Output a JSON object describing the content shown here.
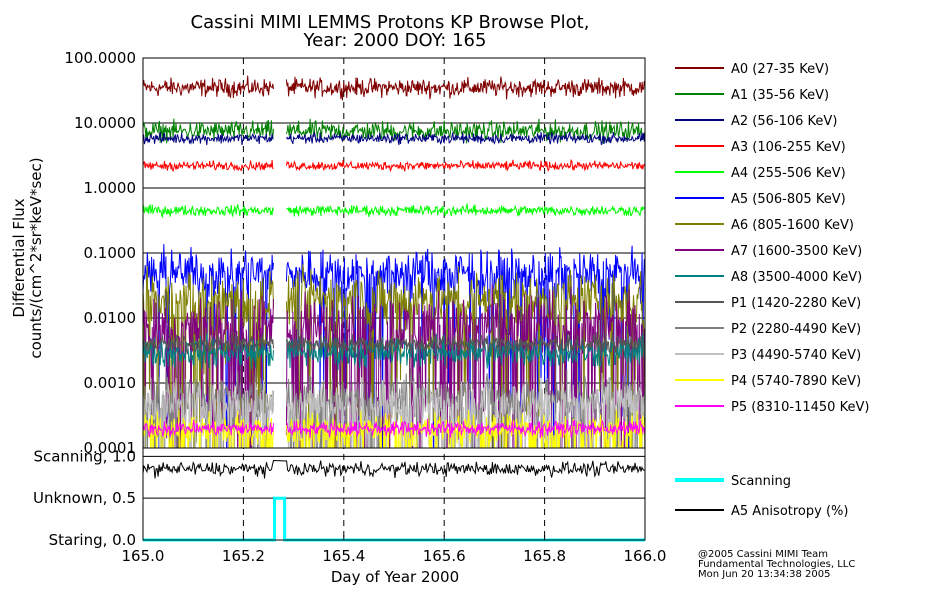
{
  "chart_data": {
    "type": "line",
    "title": "Cassini MIMI LEMMS Protons KP Browse Plot,",
    "subtitle": "Year: 2000 DOY: 165",
    "ylabel_line1": "Differential Flux",
    "ylabel_line2": "counts/(cm^2*sr*keV*sec)",
    "xlabel": "Day of Year 2000",
    "xlim": [
      165.0,
      166.0
    ],
    "ylim": [
      0.0001,
      100
    ],
    "yscale": "log",
    "data_gap": [
      165.26,
      165.285
    ],
    "x_ticks": [
      "165.0",
      "165.2",
      "165.4",
      "165.6",
      "165.8",
      "166.0"
    ],
    "y_ticks": [
      "100.0000",
      "10.0000",
      "1.0000",
      "0.1000",
      "0.0100",
      "0.0010",
      "0.0001"
    ],
    "y_tick_values": [
      100,
      10,
      1,
      0.1,
      0.01,
      0.001,
      0.0001
    ],
    "series": [
      {
        "name": "A0 (27-35 KeV)",
        "color": "#800000",
        "mean": 35,
        "spread": 0.12,
        "dips": 0
      },
      {
        "name": "A1 (35-56 KeV)",
        "color": "#008000",
        "mean": 7.5,
        "spread": 0.13,
        "dips": 0
      },
      {
        "name": "A2 (56-106 KeV)",
        "color": "#000080",
        "mean": 5.8,
        "spread": 0.07,
        "dips": 0
      },
      {
        "name": "A3 (106-255 KeV)",
        "color": "#ff0000",
        "mean": 2.2,
        "spread": 0.06,
        "dips": 0
      },
      {
        "name": "A4 (255-506 KeV)",
        "color": "#00ff00",
        "mean": 0.45,
        "spread": 0.07,
        "dips": 0
      },
      {
        "name": "A5 (506-805 KeV)",
        "color": "#0000ff",
        "mean": 0.05,
        "spread": 0.3,
        "dips": 0.12
      },
      {
        "name": "A6 (805-1600 KeV)",
        "color": "#808000",
        "mean": 0.02,
        "spread": 0.35,
        "dips": 0.15
      },
      {
        "name": "A7 (1600-3500 KeV)",
        "color": "#800080",
        "mean": 0.008,
        "spread": 0.4,
        "dips": 0.22
      },
      {
        "name": "A8 (3500-4000 KeV)",
        "color": "#008080",
        "mean": 0.003,
        "spread": 0.2,
        "dips": 0
      },
      {
        "name": "P1 (1420-2280 KeV)",
        "color": "#555555",
        "mean": 0.004,
        "spread": 0.12,
        "dips": 0
      },
      {
        "name": "P2 (2280-4490 KeV)",
        "color": "#808080",
        "mean": 0.0006,
        "spread": 0.3,
        "dips": 0.15
      },
      {
        "name": "P3 (4490-5740 KeV)",
        "color": "#c0c0c0",
        "mean": 0.0005,
        "spread": 0.3,
        "dips": 0.2
      },
      {
        "name": "P4 (5740-7890 KeV)",
        "color": "#ffff00",
        "mean": 0.0002,
        "spread": 0.2,
        "dips": 0.2
      },
      {
        "name": "P5 (8310-11450 KeV)",
        "color": "#ff00ff",
        "mean": 0.0002,
        "spread": 0.1,
        "dips": 0
      }
    ],
    "lower_panel": {
      "y_ticks": [
        "Scanning, 1.0",
        "Unknown, 0.5",
        "Staring, 0.0"
      ],
      "y_tick_values": [
        1.0,
        0.5,
        0.0
      ],
      "ylim": [
        0.0,
        1.1
      ],
      "scanning_color": "#00ffff",
      "anisotropy_color": "#000000",
      "scanning_steps": [
        [
          165.0,
          0.0
        ],
        [
          165.262,
          0.0
        ],
        [
          165.262,
          0.5
        ],
        [
          165.282,
          0.5
        ],
        [
          165.282,
          0.0
        ],
        [
          166.0,
          0.0
        ]
      ],
      "anisotropy_mean": 0.85,
      "legend": [
        "Scanning",
        "A5 Anisotropy (%)"
      ]
    }
  },
  "footer": {
    "line1": "@2005 Cassini MIMI Team",
    "line2": "Fundamental Technologies, LLC",
    "line3": "Mon Jun 20 13:34:38 2005"
  }
}
